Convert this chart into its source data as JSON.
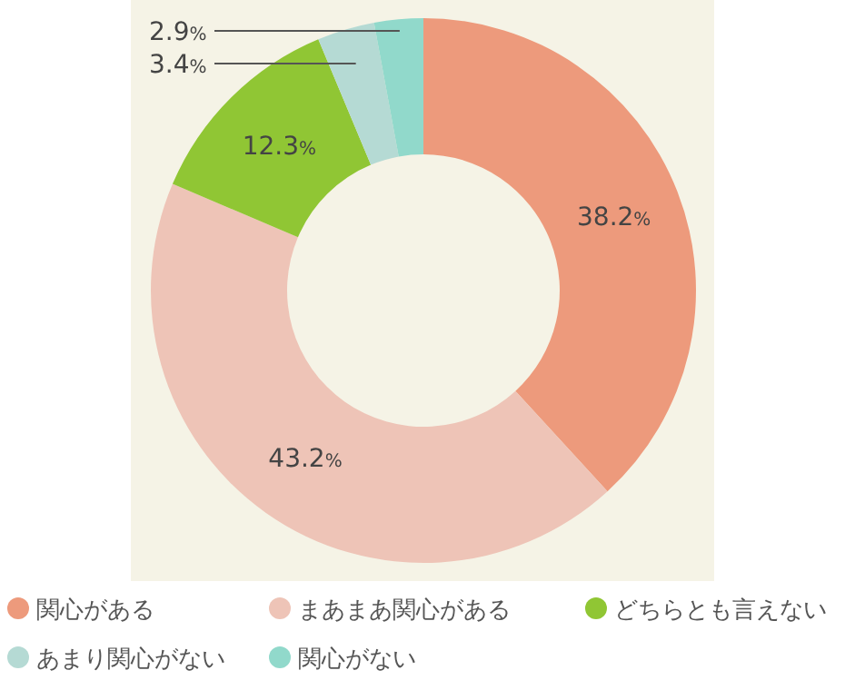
{
  "chart_data": {
    "type": "donut",
    "categories": [
      "関心がある",
      "まあまあ関心がある",
      "どちらとも言えない",
      "あまり関心がない",
      "関心がない"
    ],
    "values": [
      38.2,
      43.2,
      12.3,
      3.4,
      2.9
    ],
    "value_labels": [
      "38.2%",
      "43.2%",
      "12.3%",
      "3.4%",
      "2.9%"
    ],
    "colors": [
      "#ed9a7c",
      "#eec4b7",
      "#90c634",
      "#b5dad4",
      "#91d9cb"
    ],
    "legend": "bottom"
  }
}
